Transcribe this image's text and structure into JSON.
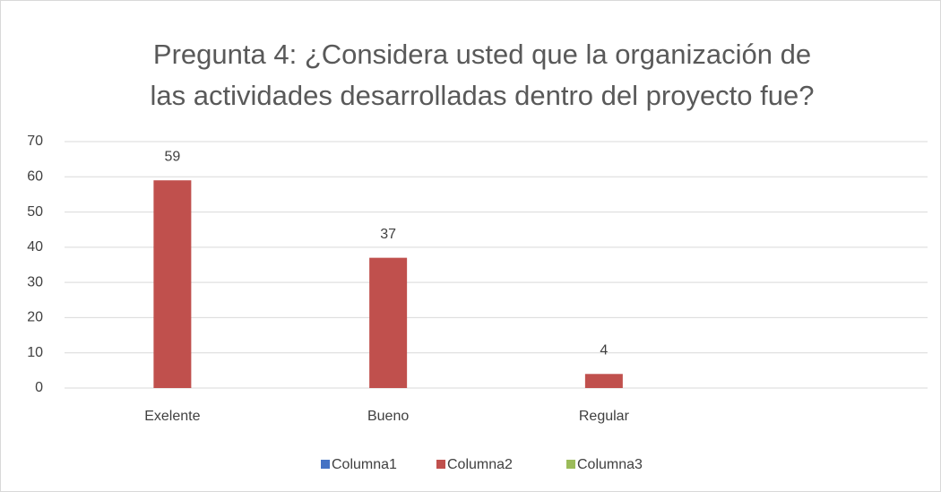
{
  "chart_data": {
    "type": "bar",
    "title": [
      "Pregunta 4: ¿Considera usted que la organización de",
      "las actividades desarrolladas dentro del proyecto fue?"
    ],
    "categories": [
      "Exelente",
      "Bueno",
      "Regular",
      null
    ],
    "series": [
      {
        "name": "Columna1",
        "color": "#4472c4",
        "values": [
          null,
          null,
          null,
          null
        ]
      },
      {
        "name": "Columna2",
        "color": "#c0504d",
        "values": [
          59,
          37,
          4,
          null
        ]
      },
      {
        "name": "Columna3",
        "color": "#9bbb59",
        "values": [
          null,
          null,
          null,
          null
        ]
      }
    ],
    "ylim": [
      0,
      70
    ],
    "yticks": [
      0,
      10,
      20,
      30,
      40,
      50,
      60,
      70
    ],
    "grid": true,
    "legend": "bottom"
  }
}
